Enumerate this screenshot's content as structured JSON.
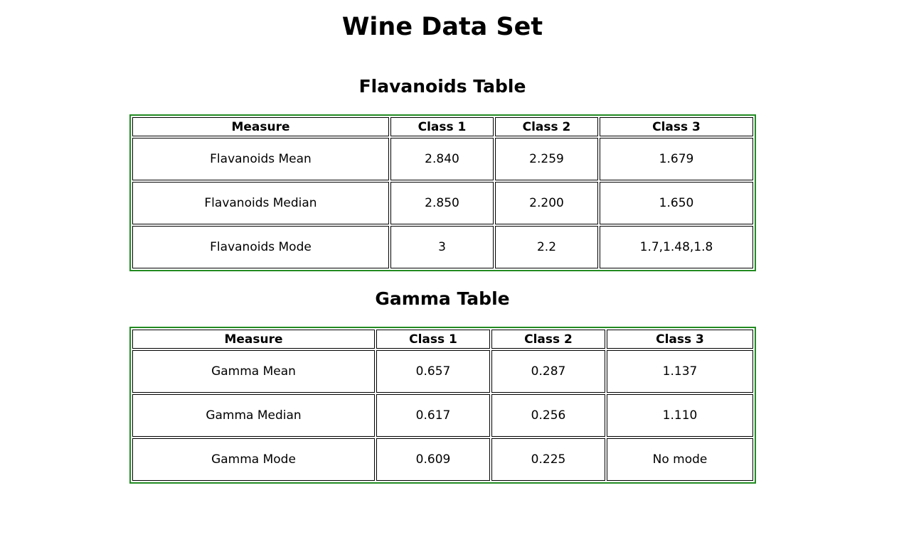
{
  "page": {
    "title": "Wine Data Set"
  },
  "flavanoids": {
    "heading": "Flavanoids Table",
    "headers": [
      "Measure",
      "Class 1",
      "Class 2",
      "Class 3"
    ],
    "rows": [
      [
        "Flavanoids Mean",
        "2.840",
        "2.259",
        "1.679"
      ],
      [
        "Flavanoids Median",
        "2.850",
        "2.200",
        "1.650"
      ],
      [
        "Flavanoids Mode",
        "3",
        "2.2",
        "1.7,1.48,1.8"
      ]
    ]
  },
  "gamma": {
    "heading": "Gamma Table",
    "headers": [
      "Measure",
      "Class 1",
      "Class 2",
      "Class 3"
    ],
    "rows": [
      [
        "Gamma Mean",
        "0.657",
        "0.287",
        "1.137"
      ],
      [
        "Gamma Median",
        "0.617",
        "0.256",
        "1.110"
      ],
      [
        "Gamma Mode",
        "0.609",
        "0.225",
        "No mode"
      ]
    ]
  },
  "colors": {
    "table_border": "#228B22",
    "cell_border": "#000000"
  }
}
